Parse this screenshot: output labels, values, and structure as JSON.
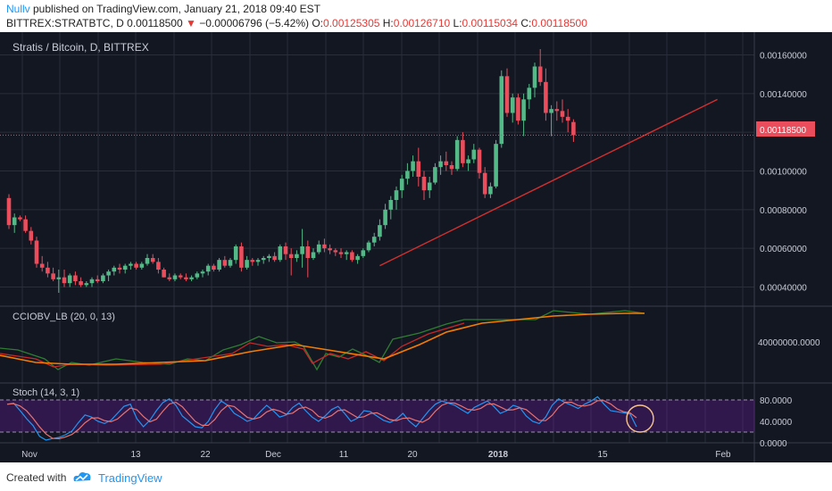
{
  "header": {
    "author": "Nullv",
    "published": " published on TradingView.com, January 21, 2018 09:40 EST",
    "symbol": "BITTREX:STRATBTC, D",
    "last": "0.00118500",
    "change_arrow": "▼",
    "change": "−0.00006796 (−5.42%)",
    "o_label": "O:",
    "o": "0.00125305",
    "h_label": "H:",
    "h": "0.00126710",
    "l_label": "L:",
    "l": "0.00115034",
    "c_label": "C:",
    "c": "0.00118500"
  },
  "main_pane": {
    "title": "Stratis / Bitcoin, D, BITTREX",
    "price_ticks": [
      "0.00160000",
      "0.00140000",
      "0.00120000",
      "0.00100000",
      "0.00080000",
      "0.00060000",
      "0.00040000"
    ],
    "price_tag": "0.00118500"
  },
  "ind1": {
    "label": "CCIOBV_LB (20, 0, 13)",
    "tick": "40000000.0000"
  },
  "ind2": {
    "label": "Stoch (14, 3, 1)",
    "ticks": [
      "80.0000",
      "40.0000",
      "0.0000"
    ]
  },
  "x_ticks": [
    "Nov",
    "13",
    "22",
    "Dec",
    "11",
    "20",
    "2018",
    "15",
    "Feb"
  ],
  "footer": {
    "created_with": "Created with",
    "brand": "TradingView"
  },
  "colors": {
    "bg": "#131722",
    "up": "#53b987",
    "down": "#eb4d5c",
    "trend": "#d32f2f",
    "ma": "#f57c00",
    "cci": "#2e7d32",
    "obv": "#c62828",
    "k": "#2196f3",
    "d": "#e57373",
    "band": "#6a1b9a",
    "accent": "#2196F3"
  },
  "chart_data": {
    "type": "candlestick",
    "title": "Stratis / Bitcoin, D, BITTREX",
    "x_labels": [
      "Nov",
      "13",
      "22",
      "Dec",
      "11",
      "20",
      "2018",
      "15",
      "Feb"
    ],
    "ylim": [
      0.00031,
      0.00169
    ],
    "ohlc": [
      [
        0.00086,
        0.00088,
        0.0007,
        0.00072
      ],
      [
        0.00072,
        0.00078,
        0.00068,
        0.00076
      ],
      [
        0.00076,
        0.00077,
        0.00074,
        0.00075
      ],
      [
        0.00075,
        0.00077,
        0.00068,
        0.00069
      ],
      [
        0.00069,
        0.00071,
        0.00062,
        0.00064
      ],
      [
        0.00064,
        0.00066,
        0.0005,
        0.00052
      ],
      [
        0.00052,
        0.00056,
        0.00048,
        0.0005
      ],
      [
        0.0005,
        0.00053,
        0.00045,
        0.00047
      ],
      [
        0.00047,
        0.0005,
        0.00043,
        0.00044
      ],
      [
        0.00044,
        0.00049,
        0.00037,
        0.00045
      ],
      [
        0.00045,
        0.00049,
        0.0004,
        0.00042
      ],
      [
        0.00042,
        0.00047,
        0.0004,
        0.00046
      ],
      [
        0.00046,
        0.00048,
        0.00041,
        0.00043
      ],
      [
        0.00043,
        0.00045,
        0.0004,
        0.00041
      ],
      [
        0.00041,
        0.00043,
        0.0004,
        0.00042
      ],
      [
        0.00042,
        0.00045,
        0.0004,
        0.00044
      ],
      [
        0.00044,
        0.00046,
        0.00042,
        0.00043
      ],
      [
        0.00043,
        0.00047,
        0.00042,
        0.00046
      ],
      [
        0.00046,
        0.00049,
        0.00043,
        0.00048
      ],
      [
        0.00048,
        0.00051,
        0.00046,
        0.0005
      ],
      [
        0.0005,
        0.00052,
        0.00047,
        0.00049
      ],
      [
        0.00049,
        0.00052,
        0.00047,
        0.00051
      ],
      [
        0.00051,
        0.00053,
        0.00049,
        0.00052
      ],
      [
        0.00052,
        0.00053,
        0.00049,
        0.0005
      ],
      [
        0.0005,
        0.00053,
        0.00049,
        0.00052
      ],
      [
        0.00052,
        0.00057,
        0.00051,
        0.00055
      ],
      [
        0.00055,
        0.00057,
        0.00052,
        0.00053
      ],
      [
        0.00053,
        0.00055,
        0.00047,
        0.00049
      ],
      [
        0.00049,
        0.0005,
        0.00045,
        0.00045
      ],
      [
        0.00045,
        0.00047,
        0.00043,
        0.00044
      ],
      [
        0.00044,
        0.00047,
        0.00043,
        0.00046
      ],
      [
        0.00046,
        0.00047,
        0.00044,
        0.00045
      ],
      [
        0.00045,
        0.00047,
        0.00043,
        0.00044
      ],
      [
        0.00044,
        0.00046,
        0.00043,
        0.00045
      ],
      [
        0.00045,
        0.00048,
        0.00044,
        0.00047
      ],
      [
        0.00047,
        0.00049,
        0.00045,
        0.00048
      ],
      [
        0.00048,
        0.00052,
        0.00046,
        0.00051
      ],
      [
        0.00051,
        0.00052,
        0.00048,
        0.00049
      ],
      [
        0.00049,
        0.00055,
        0.00048,
        0.00054
      ],
      [
        0.00054,
        0.00056,
        0.0005,
        0.00051
      ],
      [
        0.00051,
        0.00055,
        0.0005,
        0.00054
      ],
      [
        0.00054,
        0.00062,
        0.00052,
        0.00061
      ],
      [
        0.00061,
        0.00063,
        0.00048,
        0.0005
      ],
      [
        0.0005,
        0.00056,
        0.00049,
        0.00054
      ],
      [
        0.00054,
        0.00055,
        0.00051,
        0.00053
      ],
      [
        0.00053,
        0.00055,
        0.00051,
        0.00054
      ],
      [
        0.00054,
        0.00056,
        0.00052,
        0.00055
      ],
      [
        0.00055,
        0.00057,
        0.00053,
        0.00056
      ],
      [
        0.00056,
        0.00058,
        0.00053,
        0.00054
      ],
      [
        0.00054,
        0.00062,
        0.00053,
        0.00061
      ],
      [
        0.00061,
        0.00063,
        0.00054,
        0.00057
      ],
      [
        0.00057,
        0.0006,
        0.00046,
        0.00055
      ],
      [
        0.00055,
        0.00059,
        0.00053,
        0.00057
      ],
      [
        0.00057,
        0.0007,
        0.0005,
        0.00061
      ],
      [
        0.00061,
        0.00064,
        0.00045,
        0.00055
      ],
      [
        0.00055,
        0.0006,
        0.00054,
        0.00058
      ],
      [
        0.00058,
        0.00064,
        0.00057,
        0.00062
      ],
      [
        0.00062,
        0.00065,
        0.00058,
        0.0006
      ],
      [
        0.0006,
        0.00062,
        0.00057,
        0.00059
      ],
      [
        0.00059,
        0.0006,
        0.00056,
        0.00058
      ],
      [
        0.00058,
        0.0006,
        0.00055,
        0.00057
      ],
      [
        0.00057,
        0.00059,
        0.00054,
        0.00058
      ],
      [
        0.00058,
        0.00059,
        0.00053,
        0.00054
      ],
      [
        0.00054,
        0.00057,
        0.00052,
        0.00056
      ],
      [
        0.00056,
        0.0006,
        0.00055,
        0.00059
      ],
      [
        0.00059,
        0.00064,
        0.00058,
        0.00063
      ],
      [
        0.00063,
        0.00068,
        0.00061,
        0.00066
      ],
      [
        0.00066,
        0.00075,
        0.00064,
        0.00072
      ],
      [
        0.00072,
        0.00083,
        0.0007,
        0.0008
      ],
      [
        0.0008,
        0.00087,
        0.00075,
        0.00085
      ],
      [
        0.00085,
        0.00092,
        0.0008,
        0.0009
      ],
      [
        0.0009,
        0.00098,
        0.00086,
        0.00096
      ],
      [
        0.00096,
        0.00104,
        0.00093,
        0.001
      ],
      [
        0.001,
        0.00108,
        0.00097,
        0.00105
      ],
      [
        0.00105,
        0.00112,
        0.00092,
        0.00097
      ],
      [
        0.00097,
        0.001,
        0.00085,
        0.0009
      ],
      [
        0.0009,
        0.00097,
        0.00086,
        0.00094
      ],
      [
        0.00094,
        0.00104,
        0.00093,
        0.00102
      ],
      [
        0.00102,
        0.00108,
        0.00098,
        0.00105
      ],
      [
        0.00105,
        0.0011,
        0.001,
        0.00103
      ],
      [
        0.00103,
        0.00105,
        0.00098,
        0.00101
      ],
      [
        0.00101,
        0.00118,
        0.001,
        0.00116
      ],
      [
        0.00116,
        0.0012,
        0.00102,
        0.00104
      ],
      [
        0.00104,
        0.00108,
        0.001,
        0.00106
      ],
      [
        0.00106,
        0.00114,
        0.00104,
        0.00111
      ],
      [
        0.00111,
        0.00112,
        0.00096,
        0.00099
      ],
      [
        0.00099,
        0.00102,
        0.00086,
        0.00088
      ],
      [
        0.00088,
        0.00094,
        0.00086,
        0.00092
      ],
      [
        0.00092,
        0.00116,
        0.00091,
        0.00114
      ],
      [
        0.00114,
        0.00152,
        0.00112,
        0.00149
      ],
      [
        0.00149,
        0.00153,
        0.00128,
        0.0013
      ],
      [
        0.0013,
        0.0014,
        0.00125,
        0.00138
      ],
      [
        0.00138,
        0.0014,
        0.00124,
        0.00126
      ],
      [
        0.00126,
        0.0014,
        0.00118,
        0.00137
      ],
      [
        0.00137,
        0.00145,
        0.00132,
        0.00143
      ],
      [
        0.00143,
        0.00156,
        0.00138,
        0.00154
      ],
      [
        0.00154,
        0.00163,
        0.00144,
        0.00146
      ],
      [
        0.00146,
        0.00153,
        0.00126,
        0.0013
      ],
      [
        0.0013,
        0.00134,
        0.00118,
        0.00132
      ],
      [
        0.00132,
        0.00136,
        0.00126,
        0.00131
      ],
      [
        0.00131,
        0.00137,
        0.00125,
        0.00128
      ],
      [
        0.00128,
        0.00132,
        0.0012,
        0.00126
      ],
      [
        0.00125305,
        0.0012671,
        0.00115034,
        0.001185
      ]
    ],
    "trendline": [
      [
        67,
        0.00051
      ],
      [
        128,
        0.00137
      ]
    ]
  }
}
